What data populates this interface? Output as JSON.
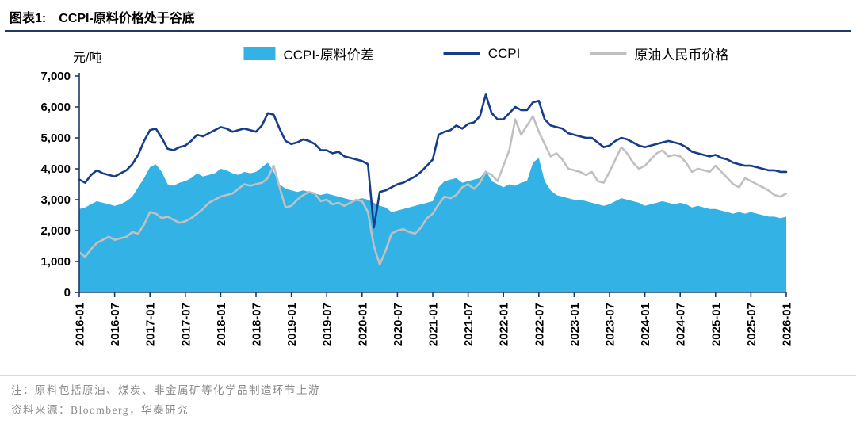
{
  "header": {
    "title_no": "图表1:",
    "title_text": "CCPI-原料价格处于谷底"
  },
  "footer": {
    "note": "注：原料包括原油、煤炭、非金属矿等化学品制造环节上游",
    "source": "资料来源：Bloomberg，华泰研究"
  },
  "chart_data": {
    "type": "line",
    "title": "CCPI-原料价格处于谷底",
    "unit": "元/吨",
    "x_start": "2016-01",
    "x_end": "2026-01",
    "x_interval": "monthly",
    "x_tick_every": 6,
    "x_ticks": [
      "2016-01",
      "2016-07",
      "2017-01",
      "2017-07",
      "2018-01",
      "2018-07",
      "2019-01",
      "2019-07",
      "2020-01",
      "2020-07",
      "2021-01",
      "2021-07",
      "2022-01",
      "2022-07",
      "2023-01",
      "2023-07",
      "2024-01",
      "2024-07",
      "2025-01",
      "2025-07",
      "2026-01"
    ],
    "ylim": [
      0,
      7000
    ],
    "y_ticks": [
      {
        "value": 0,
        "label": "0"
      },
      {
        "value": 1000,
        "label": "1,000"
      },
      {
        "value": 2000,
        "label": "2,000"
      },
      {
        "value": 3000,
        "label": "3,000"
      },
      {
        "value": 4000,
        "label": "4,000"
      },
      {
        "value": 5000,
        "label": "5,000"
      },
      {
        "value": 6000,
        "label": "6,000"
      },
      {
        "value": 7000,
        "label": "7,000"
      }
    ],
    "axis_color": "#1f3864",
    "grid": false,
    "legend_position": "top",
    "legend": [
      {
        "label": "CCPI-原料价差",
        "color": "#33b2e6",
        "swatch": "rect"
      },
      {
        "label": "CCPI",
        "color": "#153d8a",
        "swatch": "line"
      },
      {
        "label": "原油人民币价格",
        "color": "#c0c0c0",
        "swatch": "line"
      }
    ],
    "series": [
      {
        "name": "CCPI-原料价差",
        "type": "area",
        "color": "#33b2e6",
        "values": [
          2700,
          2750,
          2850,
          2950,
          2900,
          2850,
          2800,
          2850,
          2950,
          3100,
          3400,
          3700,
          4050,
          4150,
          3900,
          3500,
          3450,
          3550,
          3600,
          3700,
          3850,
          3750,
          3800,
          3850,
          4000,
          3950,
          3850,
          3800,
          3900,
          3850,
          3900,
          4050,
          4200,
          3900,
          3500,
          3350,
          3300,
          3250,
          3300,
          3250,
          3200,
          3150,
          3200,
          3150,
          3100,
          3050,
          3000,
          3000,
          3050,
          3000,
          2900,
          2800,
          2750,
          2600,
          2650,
          2700,
          2750,
          2800,
          2850,
          2900,
          2950,
          3400,
          3600,
          3650,
          3700,
          3550,
          3600,
          3650,
          3700,
          3950,
          3600,
          3500,
          3400,
          3500,
          3450,
          3550,
          3600,
          4200,
          4350,
          3600,
          3300,
          3150,
          3100,
          3050,
          3000,
          3000,
          2950,
          2900,
          2850,
          2800,
          2850,
          2950,
          3050,
          3000,
          2950,
          2900,
          2800,
          2850,
          2900,
          2950,
          2900,
          2850,
          2900,
          2850,
          2750,
          2800,
          2750,
          2700,
          2700,
          2650,
          2600,
          2550,
          2600,
          2550,
          2600,
          2550,
          2500,
          2450,
          2450,
          2400,
          2450
        ]
      },
      {
        "name": "原油人民币价格",
        "type": "line",
        "color": "#c0c0c0",
        "values": [
          1300,
          1150,
          1400,
          1600,
          1700,
          1800,
          1700,
          1750,
          1800,
          1950,
          1900,
          2200,
          2600,
          2550,
          2400,
          2450,
          2350,
          2250,
          2300,
          2400,
          2550,
          2700,
          2900,
          3000,
          3100,
          3150,
          3200,
          3350,
          3500,
          3450,
          3500,
          3550,
          3700,
          4100,
          3400,
          2750,
          2800,
          3000,
          3150,
          3250,
          3200,
          2950,
          3000,
          2850,
          2900,
          2800,
          2900,
          3000,
          2950,
          2600,
          1500,
          900,
          1350,
          1900,
          2000,
          2050,
          1950,
          1900,
          2100,
          2400,
          2550,
          2850,
          3100,
          3050,
          3150,
          3400,
          3500,
          3350,
          3550,
          3900,
          3800,
          3600,
          4100,
          4600,
          5600,
          5100,
          5400,
          5700,
          5200,
          4800,
          4400,
          4500,
          4300,
          4000,
          3950,
          3900,
          3800,
          3900,
          3600,
          3550,
          3900,
          4300,
          4700,
          4500,
          4200,
          4000,
          4100,
          4300,
          4500,
          4600,
          4400,
          4450,
          4400,
          4200,
          3900,
          4000,
          3950,
          3900,
          4100,
          3900,
          3700,
          3500,
          3400,
          3700,
          3600,
          3500,
          3400,
          3300,
          3150,
          3100,
          3200
        ]
      },
      {
        "name": "CCPI",
        "type": "line",
        "color": "#153d8a",
        "values": [
          3650,
          3550,
          3800,
          3950,
          3850,
          3800,
          3750,
          3850,
          3950,
          4150,
          4450,
          4900,
          5250,
          5300,
          5000,
          4650,
          4600,
          4700,
          4750,
          4900,
          5100,
          5050,
          5150,
          5250,
          5350,
          5300,
          5200,
          5250,
          5300,
          5250,
          5200,
          5400,
          5800,
          5750,
          5300,
          4900,
          4800,
          4850,
          4950,
          4900,
          4800,
          4600,
          4600,
          4500,
          4550,
          4400,
          4350,
          4300,
          4250,
          4150,
          2100,
          3250,
          3300,
          3400,
          3500,
          3550,
          3650,
          3750,
          3900,
          4100,
          4300,
          5100,
          5200,
          5250,
          5400,
          5300,
          5450,
          5500,
          5700,
          6400,
          5800,
          5600,
          5600,
          5800,
          6000,
          5900,
          5900,
          6150,
          6200,
          5600,
          5400,
          5350,
          5300,
          5150,
          5100,
          5050,
          5000,
          5000,
          4850,
          4700,
          4750,
          4900,
          5000,
          4950,
          4850,
          4750,
          4700,
          4750,
          4800,
          4850,
          4900,
          4850,
          4800,
          4700,
          4550,
          4500,
          4450,
          4400,
          4450,
          4350,
          4300,
          4200,
          4150,
          4100,
          4100,
          4050,
          4000,
          3950,
          3950,
          3900,
          3900
        ]
      }
    ]
  }
}
